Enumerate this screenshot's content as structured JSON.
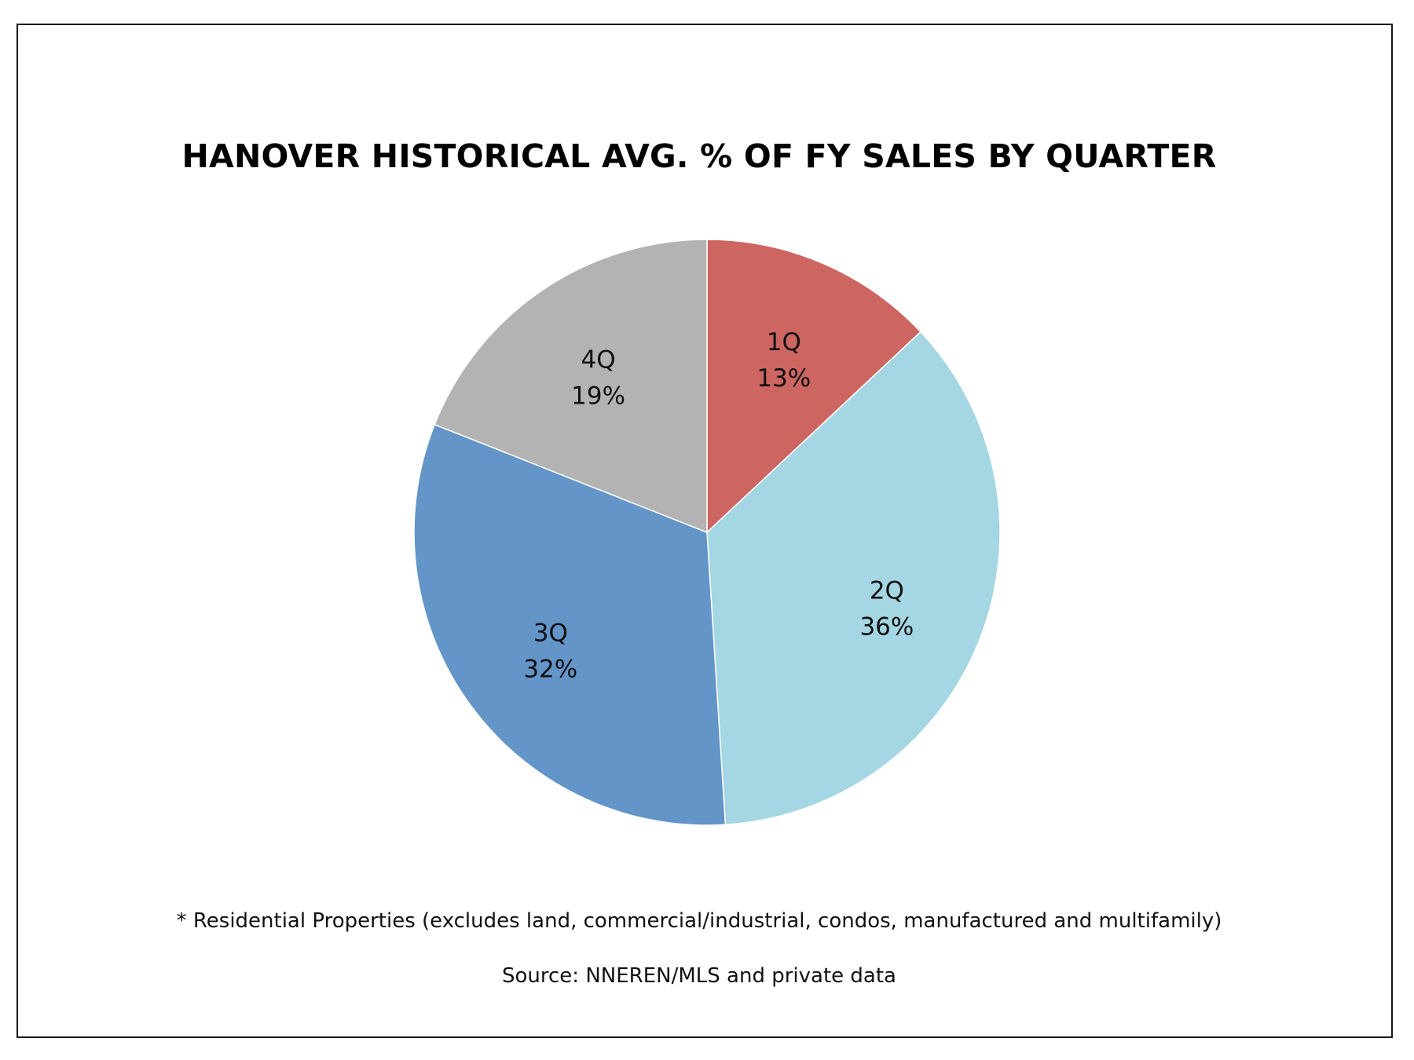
{
  "chart_data": {
    "type": "pie",
    "title": "HANOVER HISTORICAL AVG. % OF FY SALES BY QUARTER",
    "categories": [
      "1Q",
      "2Q",
      "3Q",
      "4Q"
    ],
    "values": [
      13,
      36,
      32,
      19
    ],
    "value_labels": [
      "13%",
      "36%",
      "32%",
      "19%"
    ],
    "colors": [
      "#cd6561",
      "#a5d6e3",
      "#6395c8",
      "#b3b3b3"
    ],
    "start": "12 o'clock",
    "direction": "clockwise",
    "legend": "none",
    "data_labels": "inside"
  },
  "notes": {
    "footnote": "* Residential Properties (excludes land, commercial/industrial, condos, manufactured and multifamily)",
    "source": "Source: NNEREN/MLS and private data"
  }
}
